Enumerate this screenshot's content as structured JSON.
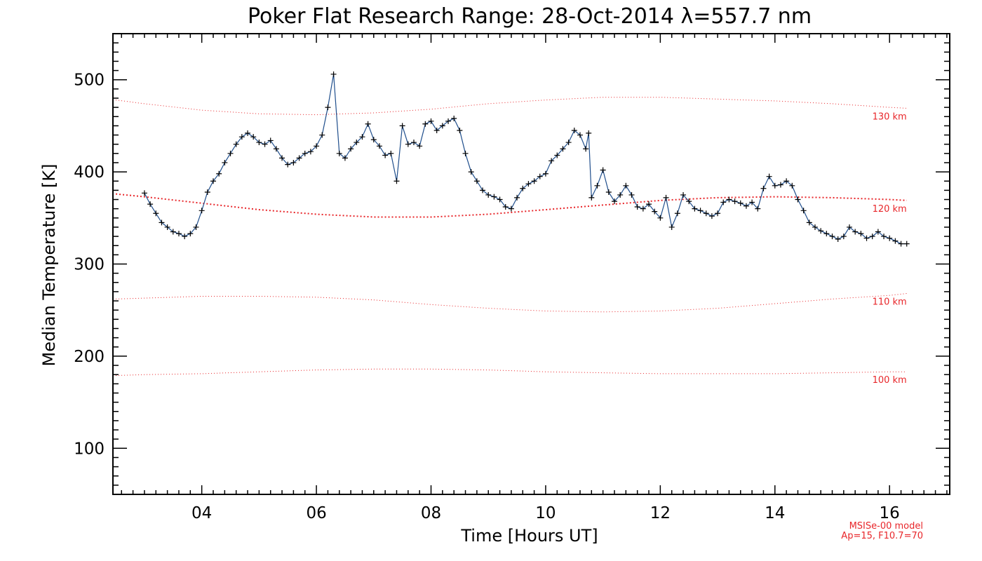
{
  "chart_data": {
    "type": "line",
    "title": "Poker Flat Research Range: 28-Oct-2014 λ=557.7 nm",
    "xlabel": "Time [Hours UT]",
    "ylabel": "Median Temperature [K]",
    "xlim": [
      2.45,
      17.05
    ],
    "ylim": [
      50,
      550
    ],
    "x_ticks": [
      4,
      6,
      8,
      10,
      12,
      14,
      16
    ],
    "x_tick_labels": [
      "04",
      "06",
      "08",
      "10",
      "12",
      "14",
      "16"
    ],
    "y_ticks": [
      100,
      200,
      300,
      400,
      500
    ],
    "y_tick_labels": [
      "100",
      "200",
      "300",
      "400",
      "500"
    ],
    "grid": false,
    "series": [
      {
        "color": "#1f4e8c",
        "marker": "+",
        "x": [
          3.0,
          3.1,
          3.2,
          3.3,
          3.4,
          3.5,
          3.6,
          3.7,
          3.8,
          3.9,
          4.0,
          4.1,
          4.2,
          4.3,
          4.4,
          4.5,
          4.6,
          4.7,
          4.8,
          4.9,
          5.0,
          5.1,
          5.2,
          5.3,
          5.4,
          5.5,
          5.6,
          5.7,
          5.8,
          5.9,
          6.0,
          6.1,
          6.2,
          6.3,
          6.4,
          6.5,
          6.6,
          6.7,
          6.8,
          6.9,
          7.0,
          7.1,
          7.2,
          7.3,
          7.4,
          7.5,
          7.6,
          7.7,
          7.8,
          7.9,
          8.0,
          8.1,
          8.2,
          8.3,
          8.4,
          8.5,
          8.6,
          8.7,
          8.8,
          8.9,
          9.0,
          9.1,
          9.2,
          9.3,
          9.4,
          9.5,
          9.6,
          9.7,
          9.8,
          9.9,
          10.0,
          10.1,
          10.2,
          10.3,
          10.4,
          10.5,
          10.6,
          10.7,
          10.75,
          10.8,
          10.9,
          11.0,
          11.1,
          11.2,
          11.3,
          11.4,
          11.5,
          11.6,
          11.7,
          11.8,
          11.9,
          12.0,
          12.1,
          12.2,
          12.3,
          12.4,
          12.5,
          12.6,
          12.7,
          12.8,
          12.9,
          13.0,
          13.1,
          13.2,
          13.3,
          13.4,
          13.5,
          13.6,
          13.7,
          13.8,
          13.9,
          14.0,
          14.1,
          14.2,
          14.3,
          14.4,
          14.5,
          14.6,
          14.7,
          14.8,
          14.9,
          15.0,
          15.1,
          15.2,
          15.3,
          15.4,
          15.5,
          15.6,
          15.7,
          15.8,
          15.9,
          16.0,
          16.1,
          16.2,
          16.3
        ],
        "y": [
          377,
          365,
          355,
          345,
          340,
          335,
          333,
          330,
          333,
          340,
          358,
          378,
          390,
          398,
          410,
          420,
          430,
          438,
          442,
          438,
          432,
          430,
          434,
          425,
          415,
          408,
          410,
          415,
          420,
          422,
          428,
          440,
          470,
          506,
          420,
          415,
          425,
          432,
          438,
          452,
          435,
          428,
          418,
          420,
          390,
          450,
          430,
          432,
          428,
          452,
          455,
          445,
          450,
          455,
          458,
          445,
          420,
          400,
          390,
          380,
          375,
          373,
          370,
          362,
          360,
          372,
          382,
          387,
          390,
          395,
          398,
          412,
          418,
          425,
          432,
          445,
          440,
          425,
          442,
          372,
          385,
          402,
          378,
          368,
          375,
          385,
          375,
          362,
          360,
          365,
          357,
          350,
          372,
          340,
          355,
          375,
          368,
          360,
          358,
          355,
          352,
          355,
          367,
          370,
          368,
          366,
          363,
          367,
          360,
          382,
          395,
          385,
          386,
          390,
          385,
          370,
          358,
          345,
          340,
          336,
          333,
          330,
          327,
          330,
          340,
          335,
          333,
          328,
          330,
          335,
          330,
          328,
          325,
          322,
          322
        ]
      }
    ],
    "model_curves": [
      {
        "label": "130 km",
        "x": [
          2.5,
          3.0,
          4.0,
          5.0,
          6.0,
          7.0,
          8.0,
          9.0,
          10.0,
          11.0,
          12.0,
          13.0,
          14.0,
          15.0,
          16.0,
          16.3
        ],
        "y": [
          478,
          474,
          467,
          463,
          462,
          464,
          468,
          474,
          478,
          481,
          481,
          479,
          477,
          474,
          470,
          469
        ]
      },
      {
        "label": "120 km",
        "x": [
          2.5,
          3.0,
          4.0,
          5.0,
          6.0,
          7.0,
          8.0,
          9.0,
          10.0,
          11.0,
          12.0,
          13.0,
          14.0,
          15.0,
          16.0,
          16.3
        ],
        "y": [
          376,
          373,
          366,
          359,
          354,
          351,
          351,
          354,
          359,
          364,
          369,
          372,
          373,
          372,
          370,
          369
        ]
      },
      {
        "label": "110 km",
        "x": [
          2.5,
          3.0,
          4.0,
          5.0,
          6.0,
          7.0,
          8.0,
          9.0,
          10.0,
          11.0,
          12.0,
          13.0,
          14.0,
          15.0,
          16.0,
          16.3
        ],
        "y": [
          262,
          263,
          265,
          265,
          264,
          261,
          256,
          252,
          249,
          248,
          249,
          252,
          257,
          262,
          266,
          268
        ]
      },
      {
        "label": "100 km",
        "x": [
          2.5,
          3.0,
          4.0,
          5.0,
          6.0,
          7.0,
          8.0,
          9.0,
          10.0,
          11.0,
          12.0,
          13.0,
          14.0,
          15.0,
          16.0,
          16.3
        ],
        "y": [
          179,
          180,
          181,
          183,
          185,
          186,
          186,
          185,
          183,
          182,
          181,
          181,
          181,
          182,
          183,
          183
        ]
      }
    ],
    "model_note": [
      "MSISe-00 model",
      "Ap=15, F10.7=70"
    ]
  },
  "colors": {
    "data_line": "#1f4e8c",
    "data_marker": "#000000",
    "model": "#e8262a",
    "axes": "#000000"
  }
}
